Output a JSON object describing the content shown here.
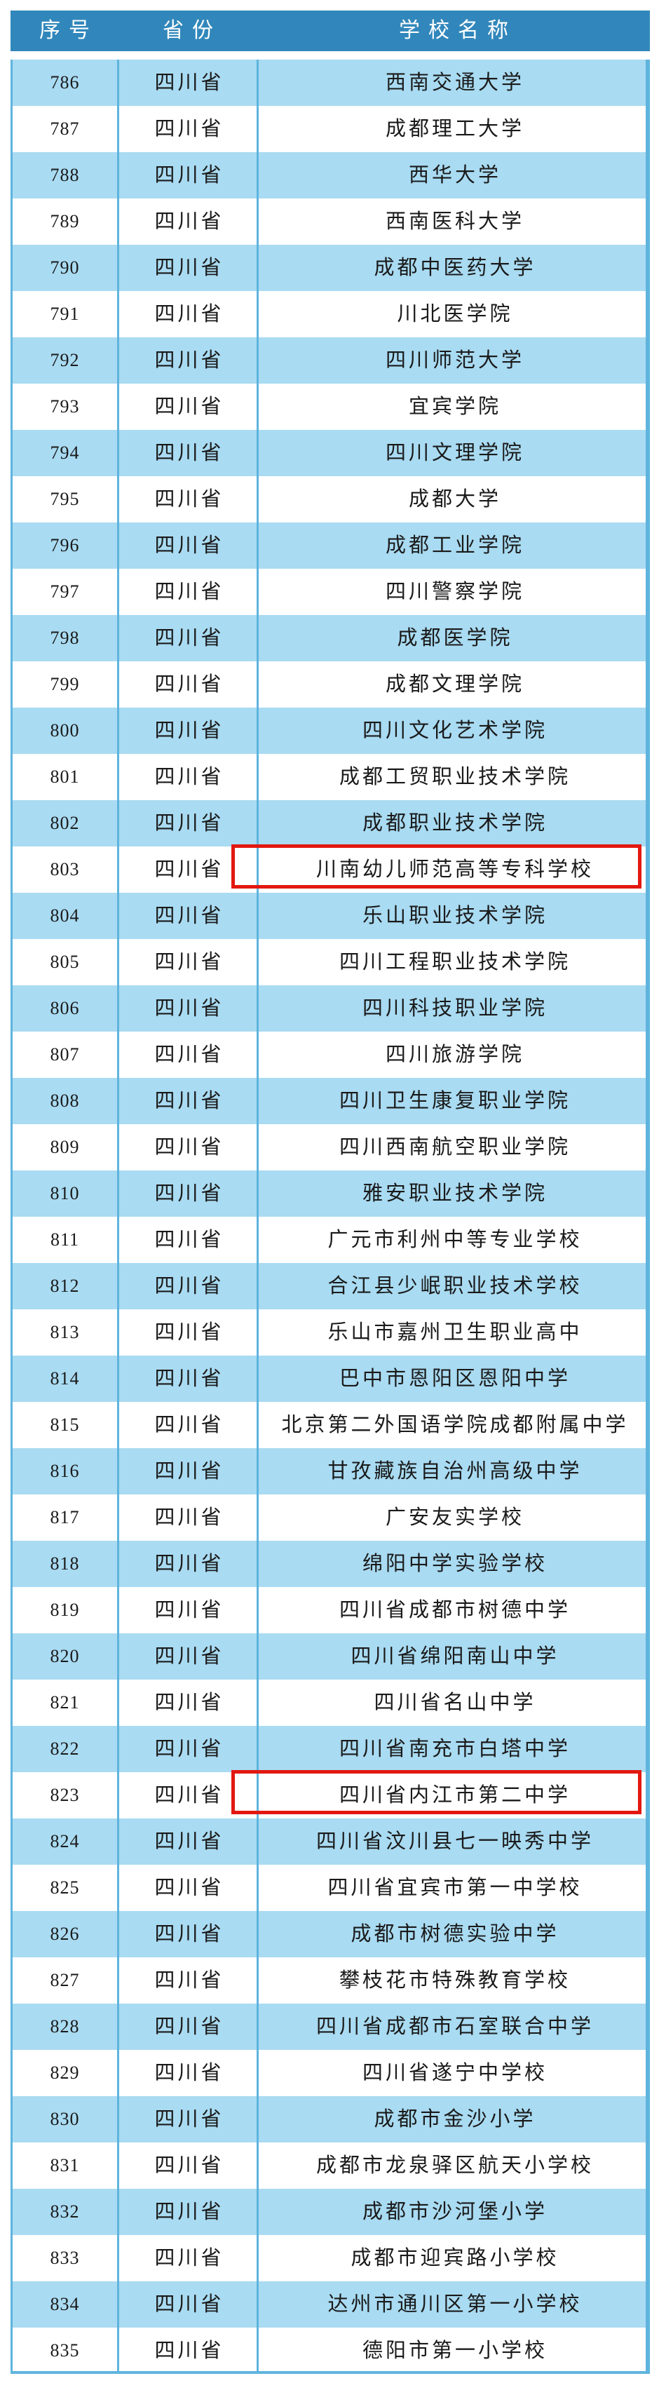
{
  "theme": {
    "header_bg": "#3187bb",
    "row_blue": "#a9dbf2",
    "line_blue": "#5fb4de",
    "highlight_red": "#e21810",
    "text_color": "#1a1a1a"
  },
  "table": {
    "columns": [
      "序号",
      "省份",
      "学校名称"
    ],
    "rows": [
      {
        "no": "786",
        "province": "四川省",
        "school": "西南交通大学",
        "highlight": false
      },
      {
        "no": "787",
        "province": "四川省",
        "school": "成都理工大学",
        "highlight": false
      },
      {
        "no": "788",
        "province": "四川省",
        "school": "西华大学",
        "highlight": false
      },
      {
        "no": "789",
        "province": "四川省",
        "school": "西南医科大学",
        "highlight": false
      },
      {
        "no": "790",
        "province": "四川省",
        "school": "成都中医药大学",
        "highlight": false
      },
      {
        "no": "791",
        "province": "四川省",
        "school": "川北医学院",
        "highlight": false
      },
      {
        "no": "792",
        "province": "四川省",
        "school": "四川师范大学",
        "highlight": false
      },
      {
        "no": "793",
        "province": "四川省",
        "school": "宜宾学院",
        "highlight": false
      },
      {
        "no": "794",
        "province": "四川省",
        "school": "四川文理学院",
        "highlight": false
      },
      {
        "no": "795",
        "province": "四川省",
        "school": "成都大学",
        "highlight": false
      },
      {
        "no": "796",
        "province": "四川省",
        "school": "成都工业学院",
        "highlight": false
      },
      {
        "no": "797",
        "province": "四川省",
        "school": "四川警察学院",
        "highlight": false
      },
      {
        "no": "798",
        "province": "四川省",
        "school": "成都医学院",
        "highlight": false
      },
      {
        "no": "799",
        "province": "四川省",
        "school": "成都文理学院",
        "highlight": false
      },
      {
        "no": "800",
        "province": "四川省",
        "school": "四川文化艺术学院",
        "highlight": false
      },
      {
        "no": "801",
        "province": "四川省",
        "school": "成都工贸职业技术学院",
        "highlight": false
      },
      {
        "no": "802",
        "province": "四川省",
        "school": "成都职业技术学院",
        "highlight": false
      },
      {
        "no": "803",
        "province": "四川省",
        "school": "川南幼儿师范高等专科学校",
        "highlight": true
      },
      {
        "no": "804",
        "province": "四川省",
        "school": "乐山职业技术学院",
        "highlight": false
      },
      {
        "no": "805",
        "province": "四川省",
        "school": "四川工程职业技术学院",
        "highlight": false
      },
      {
        "no": "806",
        "province": "四川省",
        "school": "四川科技职业学院",
        "highlight": false
      },
      {
        "no": "807",
        "province": "四川省",
        "school": "四川旅游学院",
        "highlight": false
      },
      {
        "no": "808",
        "province": "四川省",
        "school": "四川卫生康复职业学院",
        "highlight": false
      },
      {
        "no": "809",
        "province": "四川省",
        "school": "四川西南航空职业学院",
        "highlight": false
      },
      {
        "no": "810",
        "province": "四川省",
        "school": "雅安职业技术学院",
        "highlight": false
      },
      {
        "no": "811",
        "province": "四川省",
        "school": "广元市利州中等专业学校",
        "highlight": false
      },
      {
        "no": "812",
        "province": "四川省",
        "school": "合江县少岷职业技术学校",
        "highlight": false
      },
      {
        "no": "813",
        "province": "四川省",
        "school": "乐山市嘉州卫生职业高中",
        "highlight": false
      },
      {
        "no": "814",
        "province": "四川省",
        "school": "巴中市恩阳区恩阳中学",
        "highlight": false
      },
      {
        "no": "815",
        "province": "四川省",
        "school": "北京第二外国语学院成都附属中学",
        "highlight": false
      },
      {
        "no": "816",
        "province": "四川省",
        "school": "甘孜藏族自治州高级中学",
        "highlight": false
      },
      {
        "no": "817",
        "province": "四川省",
        "school": "广安友实学校",
        "highlight": false
      },
      {
        "no": "818",
        "province": "四川省",
        "school": "绵阳中学实验学校",
        "highlight": false
      },
      {
        "no": "819",
        "province": "四川省",
        "school": "四川省成都市树德中学",
        "highlight": false
      },
      {
        "no": "820",
        "province": "四川省",
        "school": "四川省绵阳南山中学",
        "highlight": false
      },
      {
        "no": "821",
        "province": "四川省",
        "school": "四川省名山中学",
        "highlight": false
      },
      {
        "no": "822",
        "province": "四川省",
        "school": "四川省南充市白塔中学",
        "highlight": false
      },
      {
        "no": "823",
        "province": "四川省",
        "school": "四川省内江市第二中学",
        "highlight": true
      },
      {
        "no": "824",
        "province": "四川省",
        "school": "四川省汶川县七一映秀中学",
        "highlight": false
      },
      {
        "no": "825",
        "province": "四川省",
        "school": "四川省宜宾市第一中学校",
        "highlight": false
      },
      {
        "no": "826",
        "province": "四川省",
        "school": "成都市树德实验中学",
        "highlight": false
      },
      {
        "no": "827",
        "province": "四川省",
        "school": "攀枝花市特殊教育学校",
        "highlight": false
      },
      {
        "no": "828",
        "province": "四川省",
        "school": "四川省成都市石室联合中学",
        "highlight": false
      },
      {
        "no": "829",
        "province": "四川省",
        "school": "四川省遂宁中学校",
        "highlight": false
      },
      {
        "no": "830",
        "province": "四川省",
        "school": "成都市金沙小学",
        "highlight": false
      },
      {
        "no": "831",
        "province": "四川省",
        "school": "成都市龙泉驿区航天小学校",
        "highlight": false
      },
      {
        "no": "832",
        "province": "四川省",
        "school": "成都市沙河堡小学",
        "highlight": false
      },
      {
        "no": "833",
        "province": "四川省",
        "school": "成都市迎宾路小学校",
        "highlight": false
      },
      {
        "no": "834",
        "province": "四川省",
        "school": "达州市通川区第一小学校",
        "highlight": false
      },
      {
        "no": "835",
        "province": "四川省",
        "school": "德阳市第一小学校",
        "highlight": false
      }
    ]
  }
}
